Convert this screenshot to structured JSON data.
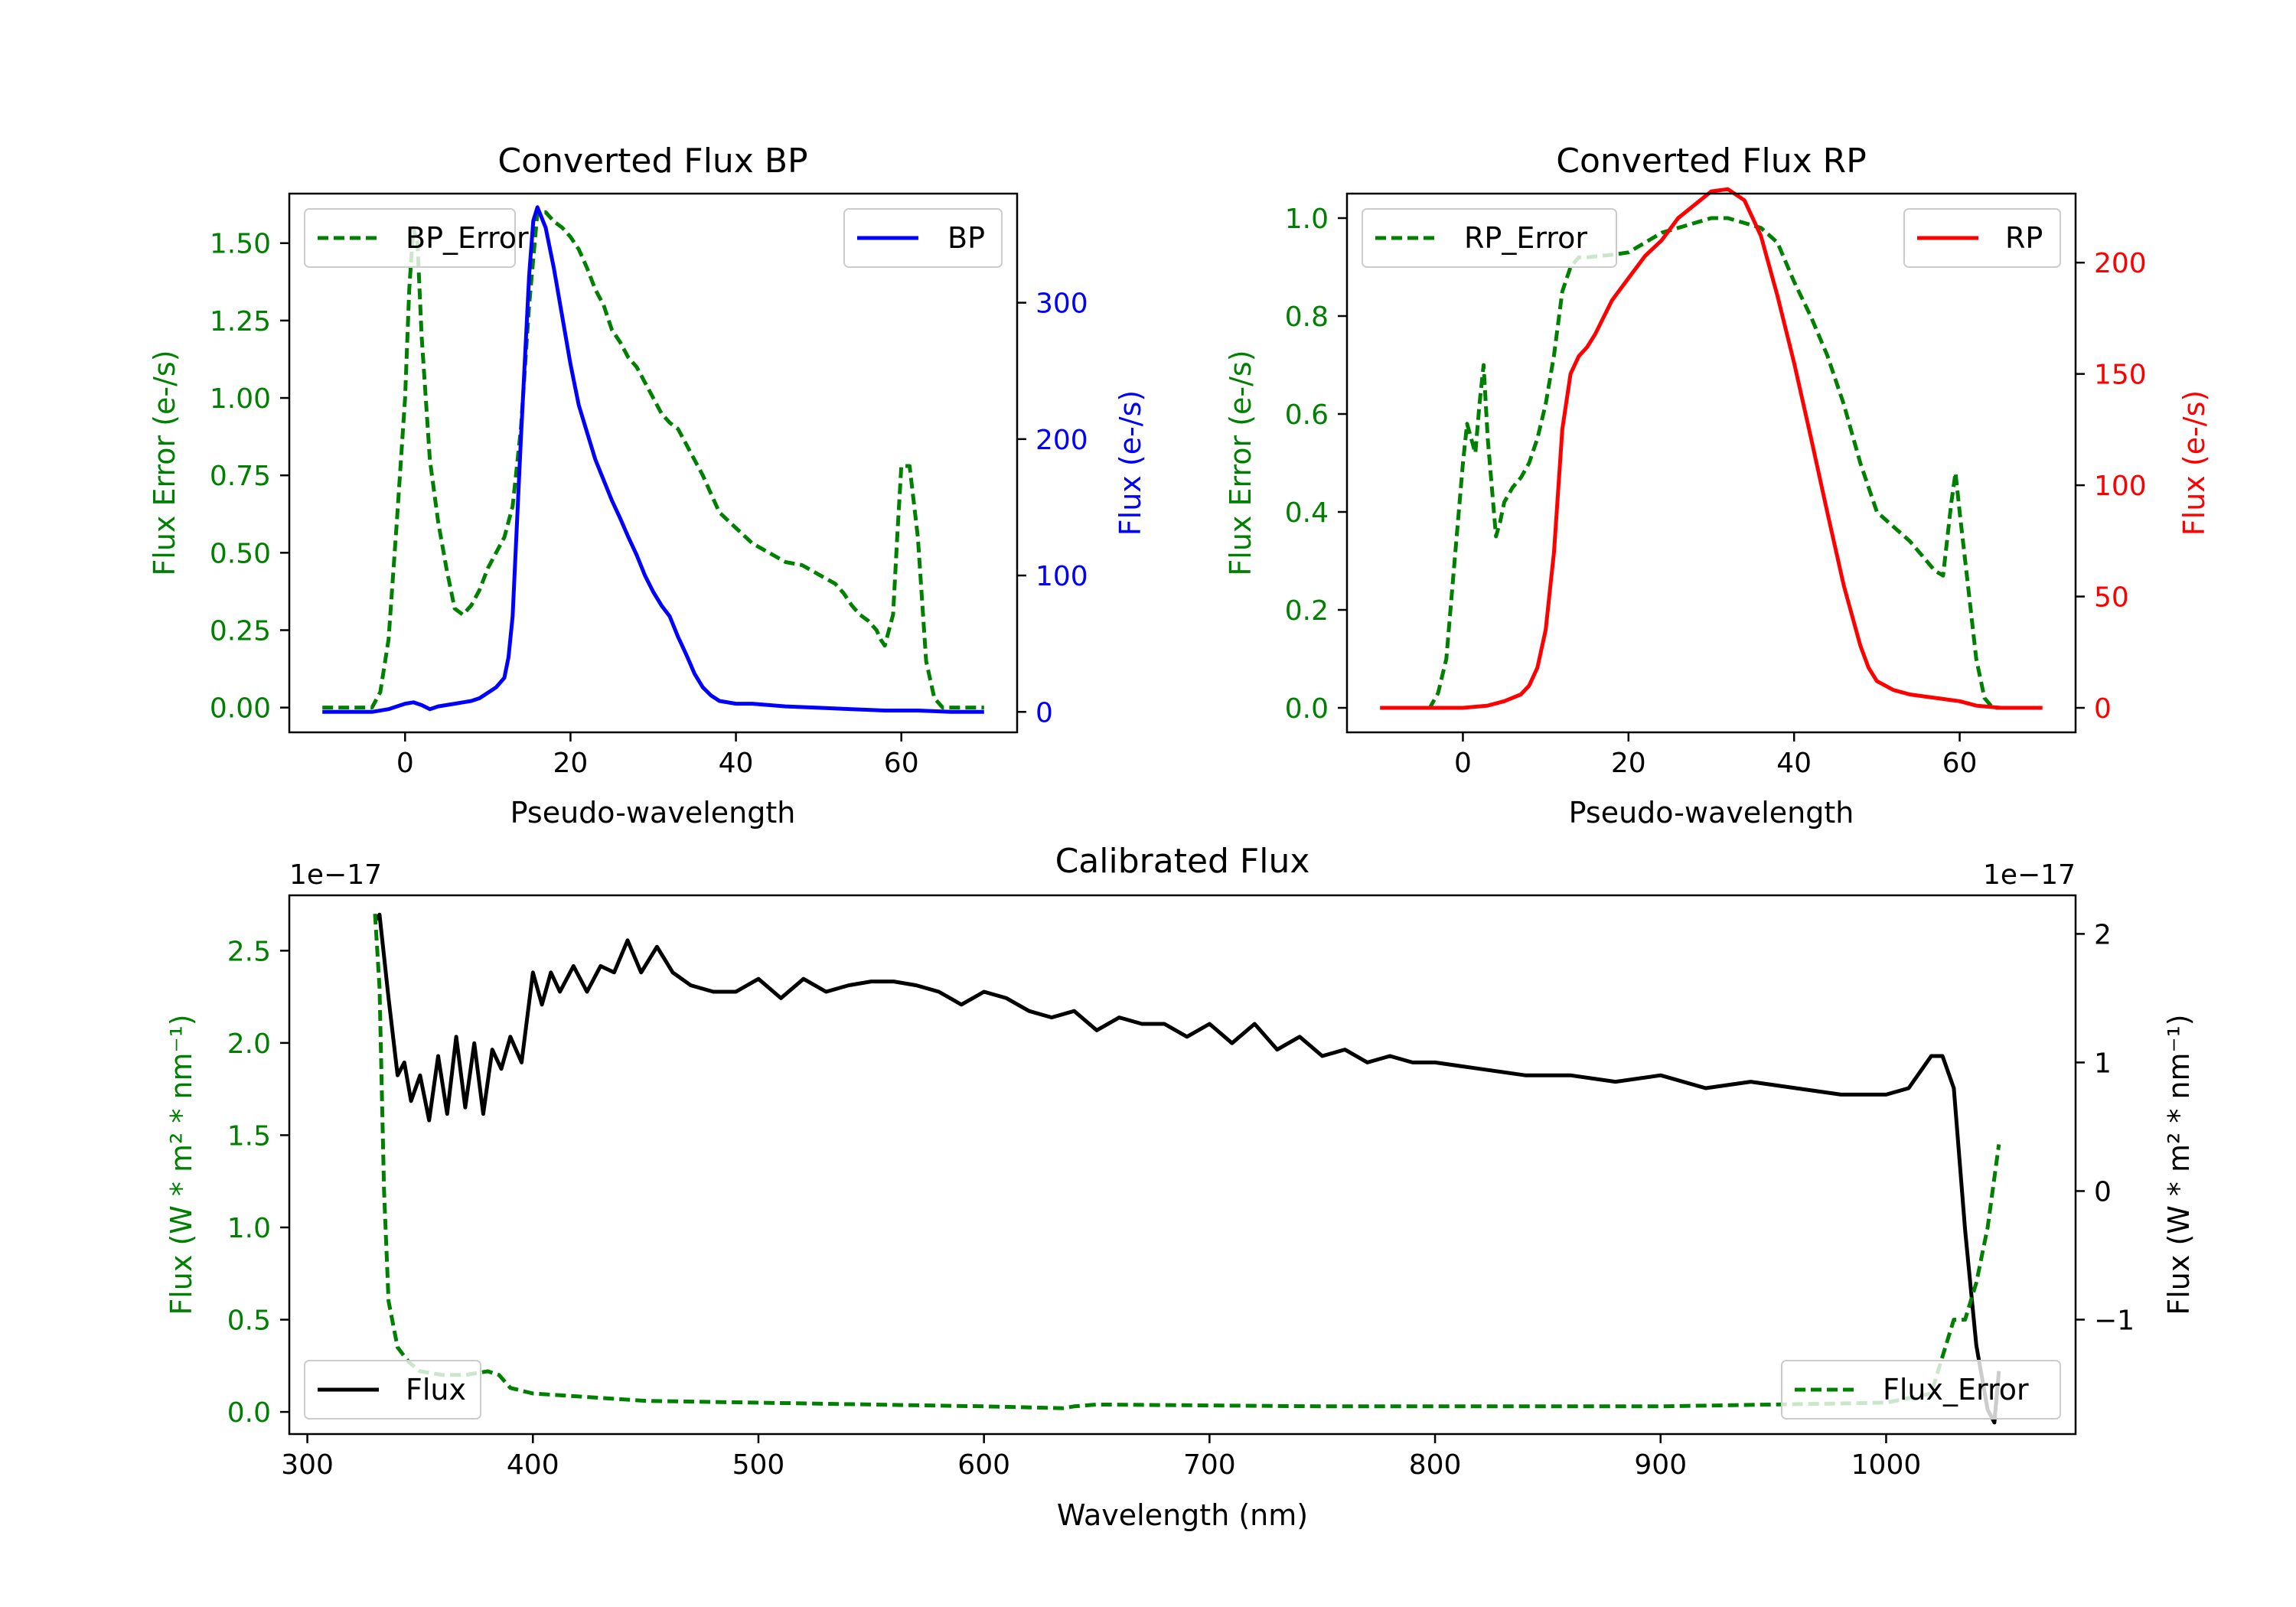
{
  "chart_data": [
    {
      "type": "line",
      "title": "Converted Flux BP",
      "xlabel": "Pseudo-wavelength",
      "xlim": [
        -14,
        74
      ],
      "xticks": [
        0,
        20,
        40,
        60
      ],
      "left_axis": {
        "label": "Flux Error (e-/s)",
        "color": "#008000",
        "lim": [
          -0.08,
          1.66
        ],
        "ticks": [
          "0.00",
          "0.25",
          "0.50",
          "0.75",
          "1.00",
          "1.25",
          "1.50"
        ]
      },
      "right_axis": {
        "label": "Flux (e-/s)",
        "color": "#0000ff",
        "lim": [
          -15,
          380
        ],
        "ticks": [
          "0",
          "100",
          "200",
          "300"
        ]
      },
      "series": [
        {
          "name": "BP_Error",
          "axis": "left",
          "color": "#008000",
          "style": "dashed",
          "legend": "top-left",
          "x": [
            -10,
            -4,
            -3,
            -2,
            -1,
            0,
            0.5,
            1,
            1.5,
            2,
            3,
            4,
            5,
            6,
            7,
            8,
            9,
            10,
            11,
            12,
            13,
            14,
            15,
            16,
            17,
            18,
            19,
            20,
            21,
            22,
            23,
            24,
            25,
            26,
            27,
            28,
            29,
            30,
            31,
            32,
            33,
            34,
            35,
            36,
            37,
            38,
            40,
            42,
            44,
            46,
            48,
            50,
            52,
            53,
            54,
            55,
            56,
            57,
            57.5,
            58,
            59,
            59.5,
            60,
            61,
            62,
            62.5,
            63,
            64,
            65,
            70
          ],
          "values": [
            0,
            0,
            0.05,
            0.22,
            0.6,
            1.0,
            1.35,
            1.55,
            1.5,
            1.2,
            0.8,
            0.6,
            0.45,
            0.32,
            0.3,
            0.33,
            0.38,
            0.45,
            0.5,
            0.55,
            0.65,
            0.9,
            1.3,
            1.6,
            1.6,
            1.57,
            1.55,
            1.52,
            1.48,
            1.42,
            1.35,
            1.3,
            1.22,
            1.18,
            1.13,
            1.1,
            1.05,
            1.0,
            0.95,
            0.92,
            0.9,
            0.85,
            0.8,
            0.75,
            0.69,
            0.63,
            0.58,
            0.53,
            0.5,
            0.47,
            0.46,
            0.43,
            0.4,
            0.37,
            0.33,
            0.3,
            0.28,
            0.25,
            0.22,
            0.2,
            0.3,
            0.55,
            0.78,
            0.78,
            0.55,
            0.35,
            0.15,
            0.03,
            0,
            0
          ]
        },
        {
          "name": "BP",
          "axis": "right",
          "color": "#0000ff",
          "style": "solid",
          "legend": "top-right",
          "x": [
            -10,
            -4,
            -2,
            0,
            1,
            2,
            3,
            4,
            5,
            6,
            7,
            8,
            9,
            10,
            11,
            12,
            12.5,
            13,
            14,
            15,
            15.5,
            16,
            17,
            18,
            19,
            20,
            21,
            22,
            23,
            24,
            25,
            26,
            27,
            28,
            29,
            30,
            31,
            32,
            33,
            34,
            35,
            36,
            37,
            38,
            40,
            42,
            44,
            46,
            50,
            54,
            58,
            62,
            66,
            70
          ],
          "values": [
            0,
            0,
            2,
            6,
            7,
            5,
            2,
            4,
            5,
            6,
            7,
            8,
            10,
            14,
            18,
            25,
            40,
            70,
            200,
            320,
            360,
            370,
            355,
            325,
            290,
            255,
            225,
            205,
            185,
            170,
            155,
            142,
            128,
            115,
            100,
            88,
            78,
            70,
            55,
            42,
            28,
            18,
            12,
            8,
            6,
            6,
            5,
            4,
            3,
            2,
            1,
            1,
            0,
            0
          ]
        }
      ]
    },
    {
      "type": "line",
      "title": "Converted Flux RP",
      "xlabel": "Pseudo-wavelength",
      "xlim": [
        -14,
        74
      ],
      "xticks": [
        0,
        20,
        40,
        60
      ],
      "left_axis": {
        "label": "Flux Error (e-/s)",
        "color": "#008000",
        "lim": [
          -0.05,
          1.05
        ],
        "ticks": [
          "0.0",
          "0.2",
          "0.4",
          "0.6",
          "0.8",
          "1.0"
        ]
      },
      "right_axis": {
        "label": "Flux (e-/s)",
        "color": "#ff0000",
        "lim": [
          -11,
          231
        ],
        "ticks": [
          "0",
          "50",
          "100",
          "150",
          "200"
        ]
      },
      "series": [
        {
          "name": "RP_Error",
          "axis": "left",
          "color": "#008000",
          "style": "dashed",
          "legend": "top-left",
          "x": [
            -10,
            -4,
            -3,
            -2,
            -1,
            0,
            0.5,
            1,
            1.5,
            2,
            2.5,
            3,
            3.5,
            4,
            4.5,
            5,
            6,
            7,
            8,
            9,
            10,
            11,
            12,
            13,
            14,
            15,
            18,
            20,
            22,
            24,
            26,
            28,
            30,
            32,
            34,
            36,
            38,
            40,
            42,
            44,
            46,
            48,
            50,
            52,
            54,
            55,
            56,
            57,
            58,
            59,
            59.5,
            60,
            61,
            62,
            63,
            64,
            65,
            70
          ],
          "values": [
            0,
            0,
            0.03,
            0.1,
            0.3,
            0.5,
            0.58,
            0.55,
            0.52,
            0.62,
            0.7,
            0.55,
            0.45,
            0.35,
            0.38,
            0.42,
            0.45,
            0.47,
            0.5,
            0.55,
            0.62,
            0.72,
            0.85,
            0.9,
            0.92,
            0.92,
            0.925,
            0.93,
            0.95,
            0.97,
            0.98,
            0.99,
            1.0,
            1.0,
            0.99,
            0.98,
            0.95,
            0.87,
            0.8,
            0.72,
            0.62,
            0.5,
            0.4,
            0.37,
            0.34,
            0.32,
            0.3,
            0.28,
            0.27,
            0.42,
            0.48,
            0.4,
            0.25,
            0.1,
            0.02,
            0,
            0,
            0
          ]
        },
        {
          "name": "RP",
          "axis": "right",
          "color": "#ff0000",
          "style": "solid",
          "legend": "top-right",
          "x": [
            -10,
            -4,
            0,
            3,
            5,
            7,
            8,
            9,
            10,
            11,
            12,
            13,
            14,
            15,
            16,
            18,
            20,
            22,
            24,
            26,
            28,
            30,
            32,
            34,
            36,
            38,
            40,
            42,
            44,
            46,
            48,
            49,
            50,
            52,
            54,
            56,
            58,
            60,
            62,
            65,
            70
          ],
          "values": [
            0,
            0,
            0,
            1,
            3,
            6,
            10,
            18,
            35,
            70,
            125,
            150,
            158,
            162,
            168,
            183,
            193,
            203,
            210,
            220,
            226,
            232,
            233,
            228,
            212,
            185,
            155,
            122,
            88,
            55,
            28,
            18,
            12,
            8,
            6,
            5,
            4,
            3,
            1,
            0,
            0
          ]
        }
      ]
    },
    {
      "type": "line",
      "title": "Calibrated Flux",
      "xlabel": "Wavelength (nm)",
      "xlim": [
        292,
        1084
      ],
      "xticks": [
        300,
        400,
        500,
        600,
        700,
        800,
        900,
        1000
      ],
      "left_axis": {
        "label": "Flux (W * m² * nm⁻¹)",
        "color": "#008000",
        "lim": [
          -0.12,
          2.8
        ],
        "ticks": [
          "0.0",
          "0.5",
          "1.0",
          "1.5",
          "2.0",
          "2.5"
        ],
        "offset_text": "1e−17"
      },
      "right_axis": {
        "label": "Flux (W * m² * nm⁻¹)",
        "color": "#000000",
        "lim": [
          -1.89,
          2.3
        ],
        "ticks": [
          "−1",
          "0",
          "1",
          "2"
        ],
        "offset_text": "1e−17"
      },
      "series": [
        {
          "name": "Flux",
          "axis": "right",
          "color": "#000000",
          "style": "solid",
          "legend": "bottom-left",
          "x": [
            330,
            332,
            336,
            340,
            343,
            346,
            350,
            354,
            358,
            362,
            366,
            370,
            374,
            378,
            382,
            386,
            390,
            395,
            400,
            404,
            408,
            412,
            418,
            424,
            430,
            436,
            442,
            448,
            455,
            462,
            470,
            480,
            490,
            500,
            510,
            520,
            530,
            540,
            550,
            560,
            570,
            580,
            590,
            600,
            610,
            620,
            630,
            640,
            650,
            660,
            670,
            680,
            690,
            700,
            710,
            720,
            730,
            740,
            750,
            760,
            770,
            780,
            790,
            800,
            820,
            840,
            860,
            880,
            900,
            920,
            940,
            960,
            980,
            1000,
            1010,
            1020,
            1025,
            1030,
            1035,
            1040,
            1045,
            1048,
            1050
          ],
          "values": [
            2.1,
            2.15,
            1.5,
            0.9,
            1.0,
            0.7,
            0.9,
            0.55,
            1.05,
            0.6,
            1.2,
            0.65,
            1.15,
            0.6,
            1.1,
            0.95,
            1.2,
            1.0,
            1.7,
            1.45,
            1.7,
            1.55,
            1.75,
            1.55,
            1.75,
            1.7,
            1.95,
            1.7,
            1.9,
            1.7,
            1.6,
            1.55,
            1.55,
            1.65,
            1.5,
            1.65,
            1.55,
            1.6,
            1.63,
            1.63,
            1.6,
            1.55,
            1.45,
            1.55,
            1.5,
            1.4,
            1.35,
            1.4,
            1.25,
            1.35,
            1.3,
            1.3,
            1.2,
            1.3,
            1.15,
            1.3,
            1.1,
            1.2,
            1.05,
            1.1,
            1.0,
            1.05,
            1.0,
            1.0,
            0.95,
            0.9,
            0.9,
            0.85,
            0.9,
            0.8,
            0.85,
            0.8,
            0.75,
            0.75,
            0.8,
            1.05,
            1.05,
            0.8,
            -0.3,
            -1.2,
            -1.7,
            -1.8,
            -1.4
          ]
        },
        {
          "name": "Flux_Error",
          "axis": "left",
          "color": "#008000",
          "style": "dashed",
          "legend": "bottom-right",
          "x": [
            330,
            332,
            334,
            336,
            340,
            345,
            350,
            360,
            370,
            380,
            385,
            390,
            400,
            450,
            500,
            550,
            600,
            635,
            640,
            650,
            700,
            750,
            800,
            850,
            900,
            950,
            1000,
            1020,
            1025,
            1030,
            1035,
            1040,
            1045,
            1050
          ],
          "values": [
            2.7,
            2.3,
            1.2,
            0.6,
            0.35,
            0.27,
            0.22,
            0.2,
            0.2,
            0.22,
            0.2,
            0.13,
            0.1,
            0.06,
            0.05,
            0.04,
            0.03,
            0.02,
            0.03,
            0.04,
            0.035,
            0.03,
            0.03,
            0.03,
            0.03,
            0.04,
            0.05,
            0.1,
            0.3,
            0.5,
            0.5,
            0.7,
            1.0,
            1.45
          ]
        }
      ]
    }
  ]
}
